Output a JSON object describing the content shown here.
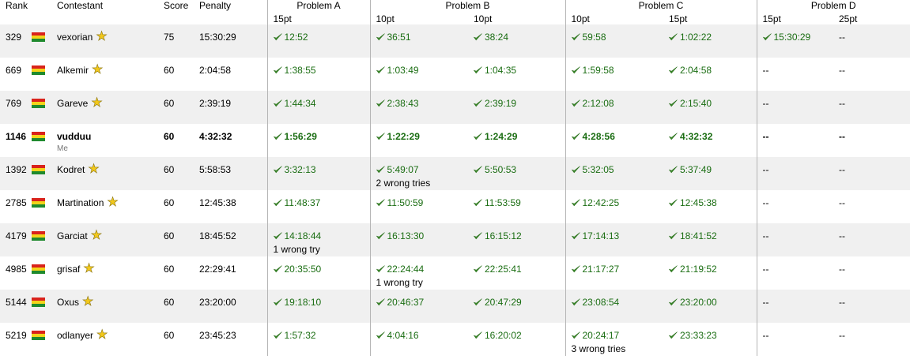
{
  "header": {
    "rank": "Rank",
    "contestant": "Contestant",
    "score": "Score",
    "penalty": "Penalty",
    "problems": [
      {
        "title": "Problem A",
        "points": [
          "15pt"
        ]
      },
      {
        "title": "Problem B",
        "points": [
          "10pt",
          "10pt"
        ]
      },
      {
        "title": "Problem C",
        "points": [
          "10pt",
          "15pt"
        ]
      },
      {
        "title": "Problem D",
        "points": [
          "15pt",
          "25pt"
        ]
      }
    ]
  },
  "colors": {
    "flag": [
      "#d9231c",
      "#f2d41a",
      "#1f8a2e"
    ],
    "accepted": "#1a6d12",
    "star": "#f2c81b"
  },
  "icons": {
    "accepted": "check-icon",
    "star": "star-icon",
    "flag": "flag-icon"
  },
  "rows": [
    {
      "rank": "329",
      "name": "vexorian",
      "score": "75",
      "penalty": "15:30:29",
      "cells": [
        {
          "t": "12:52"
        },
        {
          "t": "36:51"
        },
        {
          "t": "38:24"
        },
        {
          "t": "59:58"
        },
        {
          "t": "1:02:22"
        },
        {
          "t": "15:30:29"
        },
        {
          "none": "--"
        }
      ]
    },
    {
      "rank": "669",
      "name": "Alkemir",
      "score": "60",
      "penalty": "2:04:58",
      "cells": [
        {
          "t": "1:38:55"
        },
        {
          "t": "1:03:49"
        },
        {
          "t": "1:04:35"
        },
        {
          "t": "1:59:58"
        },
        {
          "t": "2:04:58"
        },
        {
          "none": "--"
        },
        {
          "none": "--"
        }
      ]
    },
    {
      "rank": "769",
      "name": "Gareve",
      "score": "60",
      "penalty": "2:39:19",
      "cells": [
        {
          "t": "1:44:34"
        },
        {
          "t": "2:38:43"
        },
        {
          "t": "2:39:19"
        },
        {
          "t": "2:12:08"
        },
        {
          "t": "2:15:40"
        },
        {
          "none": "--"
        },
        {
          "none": "--"
        }
      ]
    },
    {
      "rank": "1146",
      "name": "vudduu",
      "me": "Me",
      "score": "60",
      "penalty": "4:32:32",
      "cells": [
        {
          "t": "1:56:29"
        },
        {
          "t": "1:22:29"
        },
        {
          "t": "1:24:29"
        },
        {
          "t": "4:28:56"
        },
        {
          "t": "4:32:32"
        },
        {
          "none": "--"
        },
        {
          "none": "--"
        }
      ]
    },
    {
      "rank": "1392",
      "name": "Kodret",
      "score": "60",
      "penalty": "5:58:53",
      "cells": [
        {
          "t": "3:32:13"
        },
        {
          "t": "5:49:07",
          "tries": "2 wrong tries"
        },
        {
          "t": "5:50:53"
        },
        {
          "t": "5:32:05"
        },
        {
          "t": "5:37:49"
        },
        {
          "none": "--"
        },
        {
          "none": "--"
        }
      ]
    },
    {
      "rank": "2785",
      "name": "Martination",
      "score": "60",
      "penalty": "12:45:38",
      "cells": [
        {
          "t": "11:48:37"
        },
        {
          "t": "11:50:59"
        },
        {
          "t": "11:53:59"
        },
        {
          "t": "12:42:25"
        },
        {
          "t": "12:45:38"
        },
        {
          "none": "--"
        },
        {
          "none": "--"
        }
      ]
    },
    {
      "rank": "4179",
      "name": "Garciat",
      "score": "60",
      "penalty": "18:45:52",
      "cells": [
        {
          "t": "14:18:44",
          "tries": "1 wrong try"
        },
        {
          "t": "16:13:30"
        },
        {
          "t": "16:15:12"
        },
        {
          "t": "17:14:13"
        },
        {
          "t": "18:41:52"
        },
        {
          "none": "--"
        },
        {
          "none": "--"
        }
      ]
    },
    {
      "rank": "4985",
      "name": "grisaf",
      "score": "60",
      "penalty": "22:29:41",
      "cells": [
        {
          "t": "20:35:50"
        },
        {
          "t": "22:24:44",
          "tries": "1 wrong try"
        },
        {
          "t": "22:25:41"
        },
        {
          "t": "21:17:27"
        },
        {
          "t": "21:19:52"
        },
        {
          "none": "--"
        },
        {
          "none": "--"
        }
      ]
    },
    {
      "rank": "5144",
      "name": "Oxus",
      "score": "60",
      "penalty": "23:20:00",
      "cells": [
        {
          "t": "19:18:10"
        },
        {
          "t": "20:46:37"
        },
        {
          "t": "20:47:29"
        },
        {
          "t": "23:08:54"
        },
        {
          "t": "23:20:00"
        },
        {
          "none": "--"
        },
        {
          "none": "--"
        }
      ]
    },
    {
      "rank": "5219",
      "name": "odlanyer",
      "score": "60",
      "penalty": "23:45:23",
      "cells": [
        {
          "t": "1:57:32"
        },
        {
          "t": "4:04:16"
        },
        {
          "t": "16:20:02"
        },
        {
          "t": "20:24:17",
          "tries": "3 wrong tries"
        },
        {
          "t": "23:33:23"
        },
        {
          "none": "--"
        },
        {
          "none": "--"
        }
      ]
    }
  ]
}
